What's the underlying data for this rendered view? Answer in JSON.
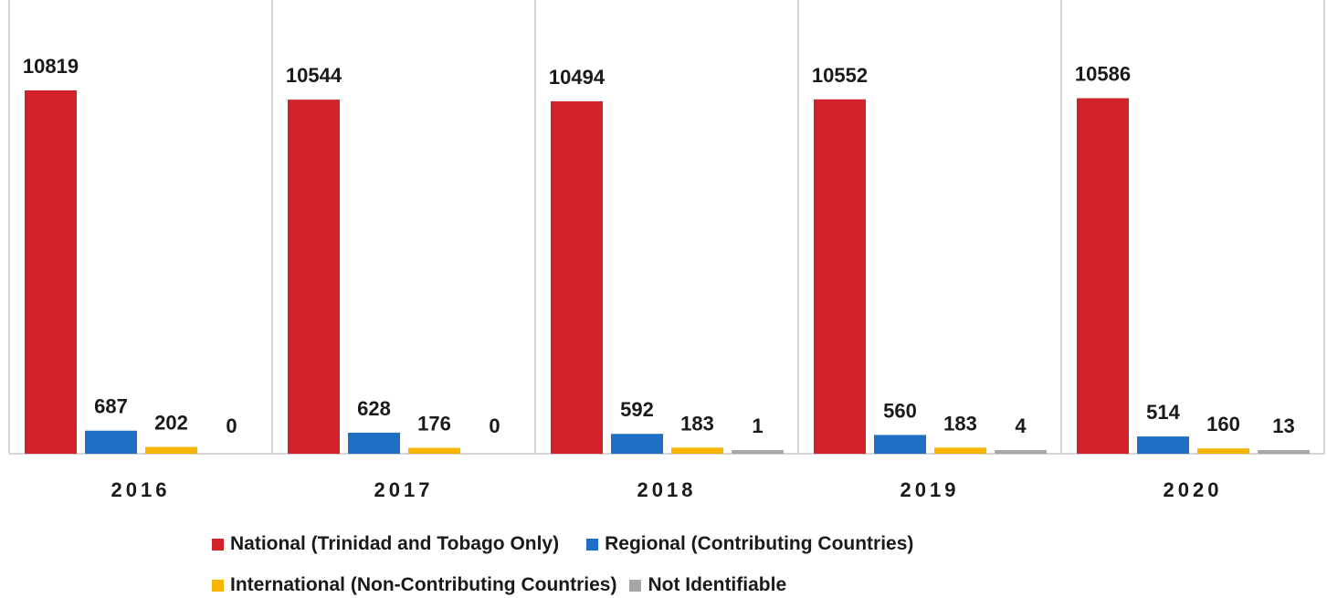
{
  "chart_data": {
    "type": "bar",
    "categories": [
      "2016",
      "2017",
      "2018",
      "2019",
      "2020"
    ],
    "series": [
      {
        "name": "National (Trinidad and Tobago Only)",
        "color": "#d2232a",
        "values": [
          10819,
          10544,
          10494,
          10552,
          10586
        ]
      },
      {
        "name": "Regional (Contributing Countries)",
        "color": "#1f6fc4",
        "values": [
          687,
          628,
          592,
          560,
          514
        ]
      },
      {
        "name": "International (Non-Contributing Countries)",
        "color": "#f7b500",
        "values": [
          202,
          176,
          183,
          183,
          160
        ]
      },
      {
        "name": "Not Identifiable",
        "color": "#a6a6a6",
        "values": [
          0,
          0,
          1,
          4,
          13
        ]
      }
    ],
    "title": "",
    "xlabel": "",
    "ylabel": "",
    "ylim": [
      0,
      10819
    ],
    "grid": false,
    "legend_position": "bottom"
  }
}
